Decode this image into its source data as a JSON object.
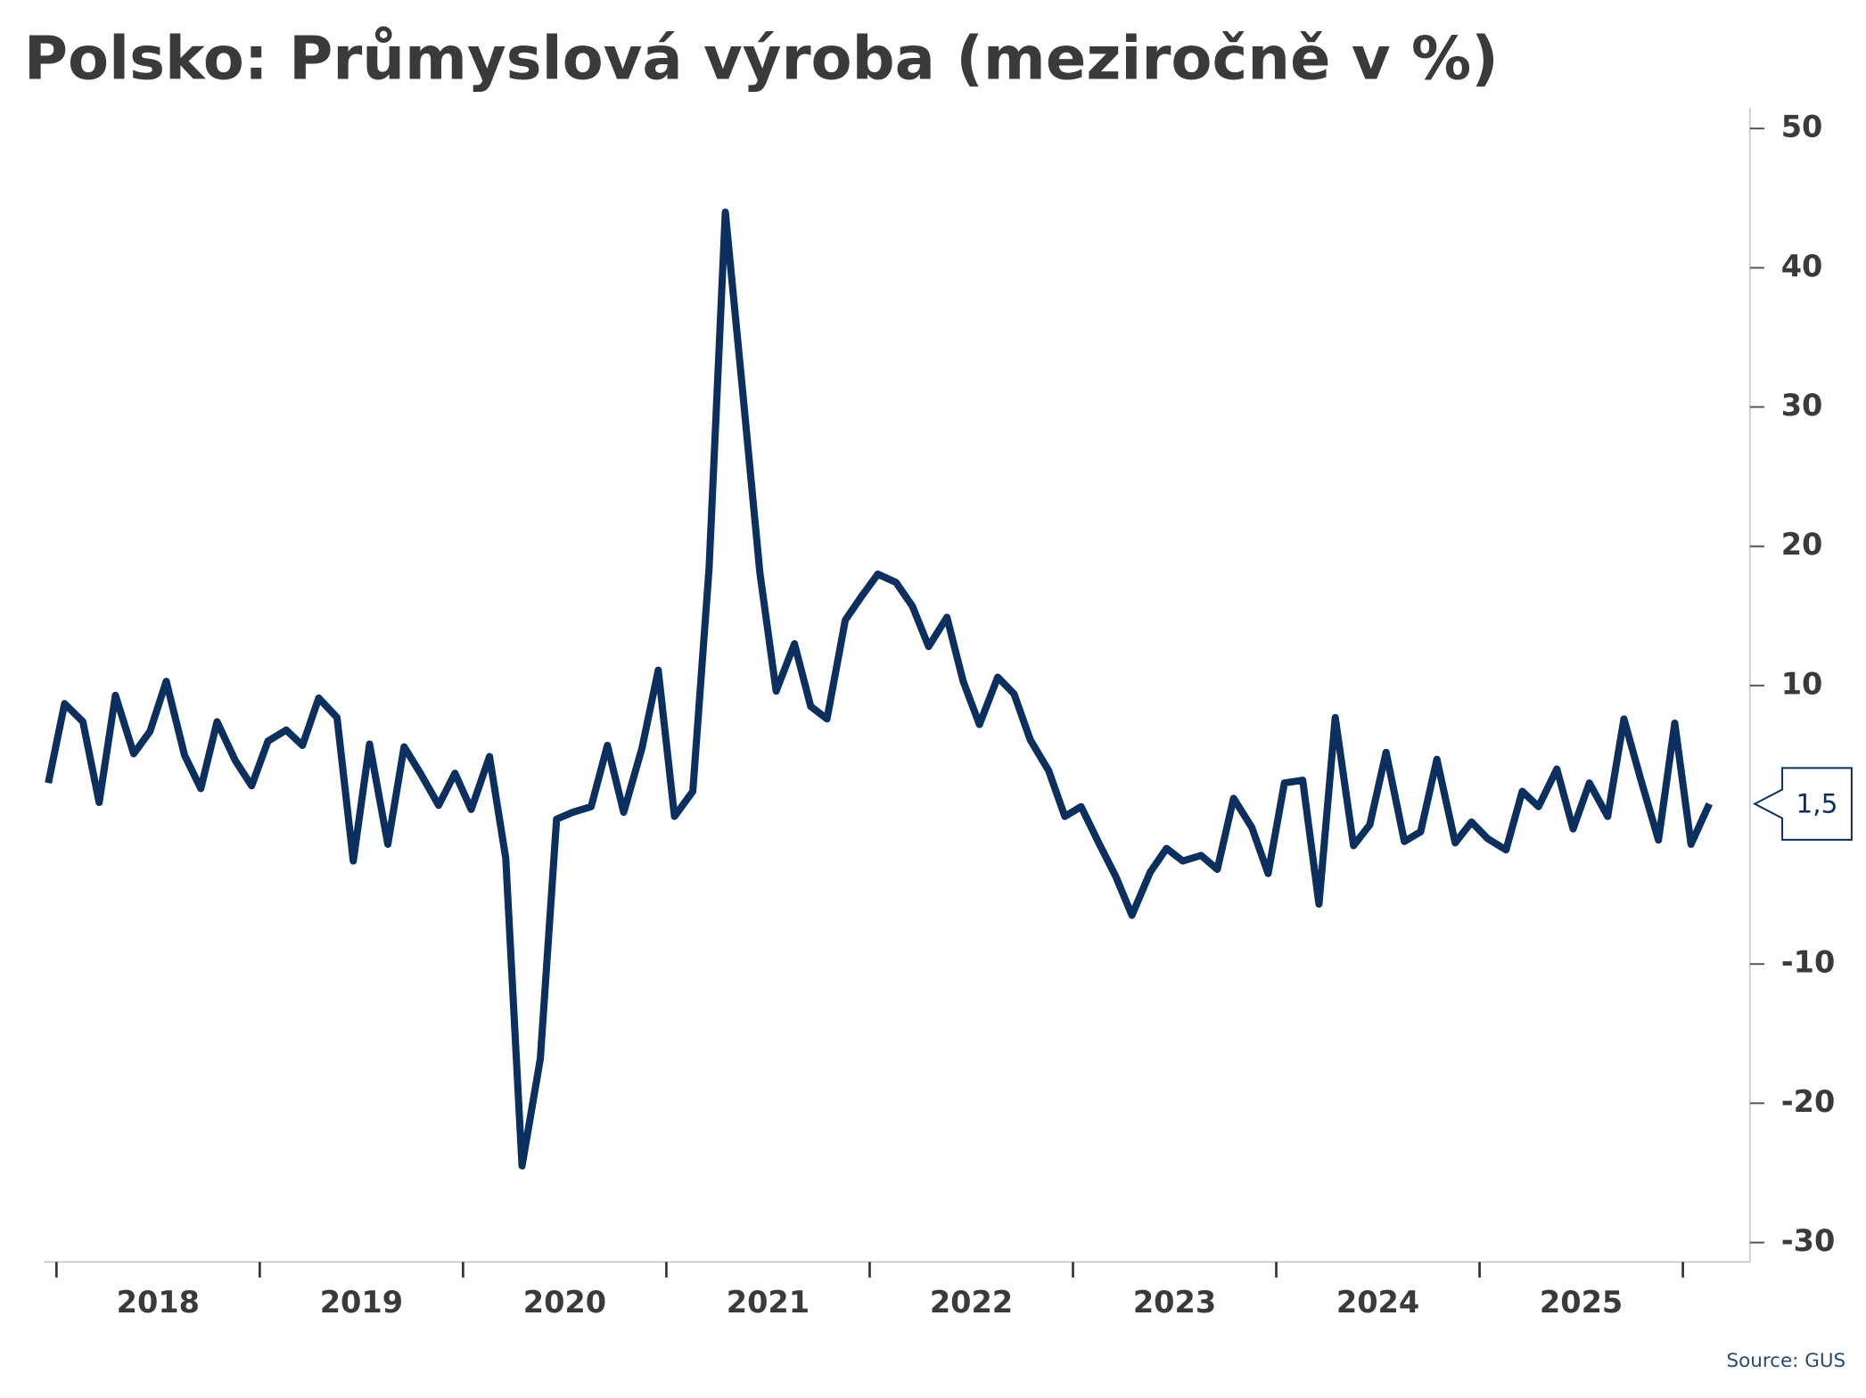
{
  "chart_data": {
    "type": "line",
    "title": "Polsko: Průmyslová výroba (meziročně v %)",
    "source": "Source: GUS",
    "x": [
      2017.96,
      2018.04,
      2018.13,
      2018.21,
      2018.29,
      2018.38,
      2018.46,
      2018.54,
      2018.63,
      2018.71,
      2018.79,
      2018.88,
      2018.96,
      2019.04,
      2019.13,
      2019.21,
      2019.29,
      2019.38,
      2019.46,
      2019.54,
      2019.63,
      2019.71,
      2019.79,
      2019.88,
      2019.96,
      2020.04,
      2020.13,
      2020.21,
      2020.29,
      2020.38,
      2020.46,
      2020.54,
      2020.63,
      2020.71,
      2020.79,
      2020.88,
      2020.96,
      2021.04,
      2021.13,
      2021.21,
      2021.29,
      2021.38,
      2021.46,
      2021.54,
      2021.63,
      2021.71,
      2021.79,
      2021.88,
      2021.96,
      2022.04,
      2022.13,
      2022.21,
      2022.29,
      2022.38,
      2022.46,
      2022.54,
      2022.63,
      2022.71,
      2022.79,
      2022.88,
      2022.96,
      2023.04,
      2023.13,
      2023.21,
      2023.29,
      2023.38,
      2023.46,
      2023.54,
      2023.63,
      2023.71,
      2023.79,
      2023.88,
      2023.96,
      2024.04,
      2024.13,
      2024.21,
      2024.29,
      2024.38,
      2024.46,
      2024.54,
      2024.63,
      2024.71,
      2024.79,
      2024.88,
      2024.96,
      2025.04,
      2025.13,
      2025.21,
      2025.29,
      2025.38,
      2025.46,
      2025.54,
      2025.63,
      2025.71,
      2025.79,
      2025.88,
      2025.96,
      2026.04,
      2026.13
    ],
    "series": [
      {
        "name": "Průmyslová výroba",
        "color": "#0b2f5e",
        "values": [
          3.0,
          8.7,
          7.4,
          1.6,
          9.3,
          5.1,
          6.7,
          10.3,
          5.0,
          2.6,
          7.4,
          4.6,
          2.8,
          6.0,
          6.8,
          5.7,
          9.1,
          7.7,
          -2.6,
          5.8,
          -1.4,
          5.6,
          3.7,
          1.4,
          3.7,
          1.1,
          4.9,
          -2.4,
          -24.5,
          -16.8,
          0.4,
          0.9,
          1.3,
          5.7,
          0.9,
          5.5,
          11.1,
          0.6,
          2.4,
          18.4,
          44.0,
          30.4,
          18.1,
          9.6,
          13.0,
          8.5,
          7.6,
          14.7,
          16.4,
          18.0,
          17.4,
          15.7,
          12.8,
          14.9,
          10.3,
          7.2,
          10.6,
          9.4,
          6.1,
          3.9,
          0.6,
          1.3,
          -1.4,
          -3.7,
          -6.5,
          -3.4,
          -1.7,
          -2.6,
          -2.2,
          -3.2,
          1.9,
          -0.2,
          -3.5,
          3.0,
          3.2,
          -5.7,
          7.7,
          -1.5,
          0.0,
          5.2,
          -1.2,
          -0.5,
          4.7,
          -1.3,
          0.2,
          -1.0,
          -1.8,
          2.4,
          1.3,
          4.0,
          -0.3,
          3.0,
          0.6,
          7.6,
          3.4,
          -1.1,
          7.3,
          -1.4,
          1.5
        ],
        "value_labels": [
          null,
          null,
          null,
          null,
          null,
          null,
          null,
          null,
          null,
          null,
          null,
          null,
          null,
          null,
          null,
          null,
          null,
          null,
          null,
          null,
          null,
          null,
          null,
          null,
          null,
          null,
          null,
          null,
          null,
          null,
          null,
          null,
          null,
          null,
          null,
          null,
          null,
          null,
          null,
          null,
          null,
          null,
          null,
          null,
          null,
          null,
          null,
          null,
          null,
          null,
          null,
          null,
          null,
          null,
          null,
          null,
          null,
          null,
          null,
          null,
          null,
          null,
          null,
          null,
          null,
          null,
          null,
          null,
          null,
          null,
          null,
          null,
          null,
          null,
          null,
          null,
          null,
          null,
          null,
          null,
          null,
          null,
          null,
          null,
          null,
          null,
          null,
          null,
          null,
          null,
          null,
          null,
          null,
          null,
          null,
          null,
          null,
          null,
          "1,5"
        ]
      }
    ],
    "xlim": [
      2017.94,
      2026.33
    ],
    "xticks": [
      2018,
      2019,
      2020,
      2021,
      2022,
      2023,
      2024,
      2025,
      2026
    ],
    "year_labels": [
      "2018",
      "2019",
      "2020",
      "2021",
      "2022",
      "2023",
      "2024",
      "2025"
    ],
    "ylim": [
      -31.4,
      51.5
    ],
    "yticks": [
      50,
      40,
      30,
      20,
      10,
      -10,
      -20,
      -30
    ],
    "y_axis_side": "right"
  }
}
